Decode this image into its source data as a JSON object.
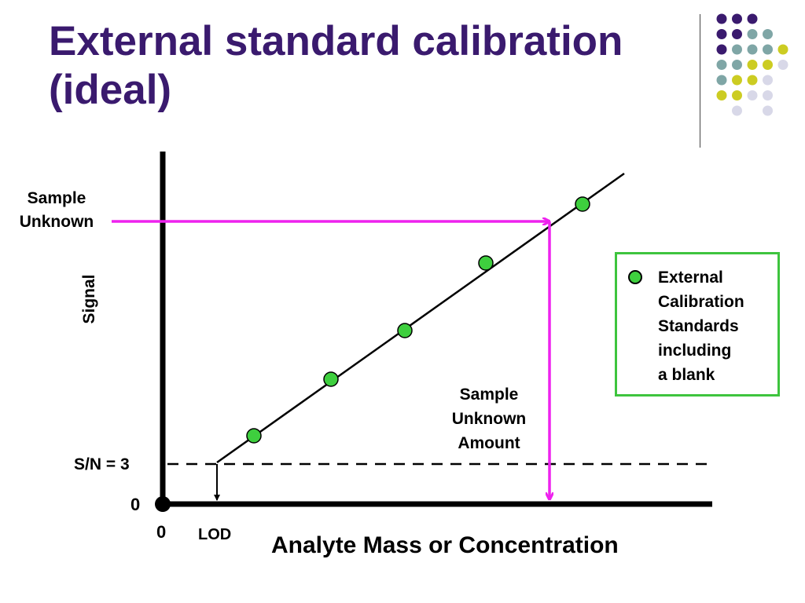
{
  "slide": {
    "title_lines": [
      "External standard calibration",
      "(ideal)"
    ]
  },
  "decor": {
    "dot_rows": [
      [
        "purple",
        "purple",
        "purple"
      ],
      [
        "purple",
        "purple",
        "teal",
        "teal"
      ],
      [
        "purple",
        "teal",
        "teal",
        "teal",
        "yellow"
      ],
      [
        "teal",
        "teal",
        "yellow",
        "yellow",
        "lavender"
      ],
      [
        "teal",
        "yellow",
        "yellow",
        "lavender"
      ],
      [
        "yellow",
        "yellow",
        "lavender",
        "lavender"
      ],
      [
        "lavender",
        "lavender"
      ]
    ],
    "colors": {
      "purple": "#3a1a6e",
      "teal": "#7fa6a6",
      "yellow": "#cccc22",
      "lavender": "#d8d8e8",
      "title": "#3a1a6e",
      "magenta": "#ee22ee",
      "point_fill": "#3ecf3e",
      "legend_border": "#3ec43e"
    }
  },
  "diagram": {
    "y_axis_label": "Signal",
    "x_axis_label": "Analyte Mass or Concentration",
    "sample_unknown_label": [
      "Sample",
      "Unknown"
    ],
    "sample_amount_label": [
      "Sample",
      "Unknown",
      "Amount"
    ],
    "sn_label": "S/N = 3",
    "zero_y": "0",
    "zero_x": "0",
    "lod_label": "LOD",
    "legend_lines": [
      "External",
      "Calibration",
      "Standards",
      "including",
      "a blank"
    ]
  }
}
